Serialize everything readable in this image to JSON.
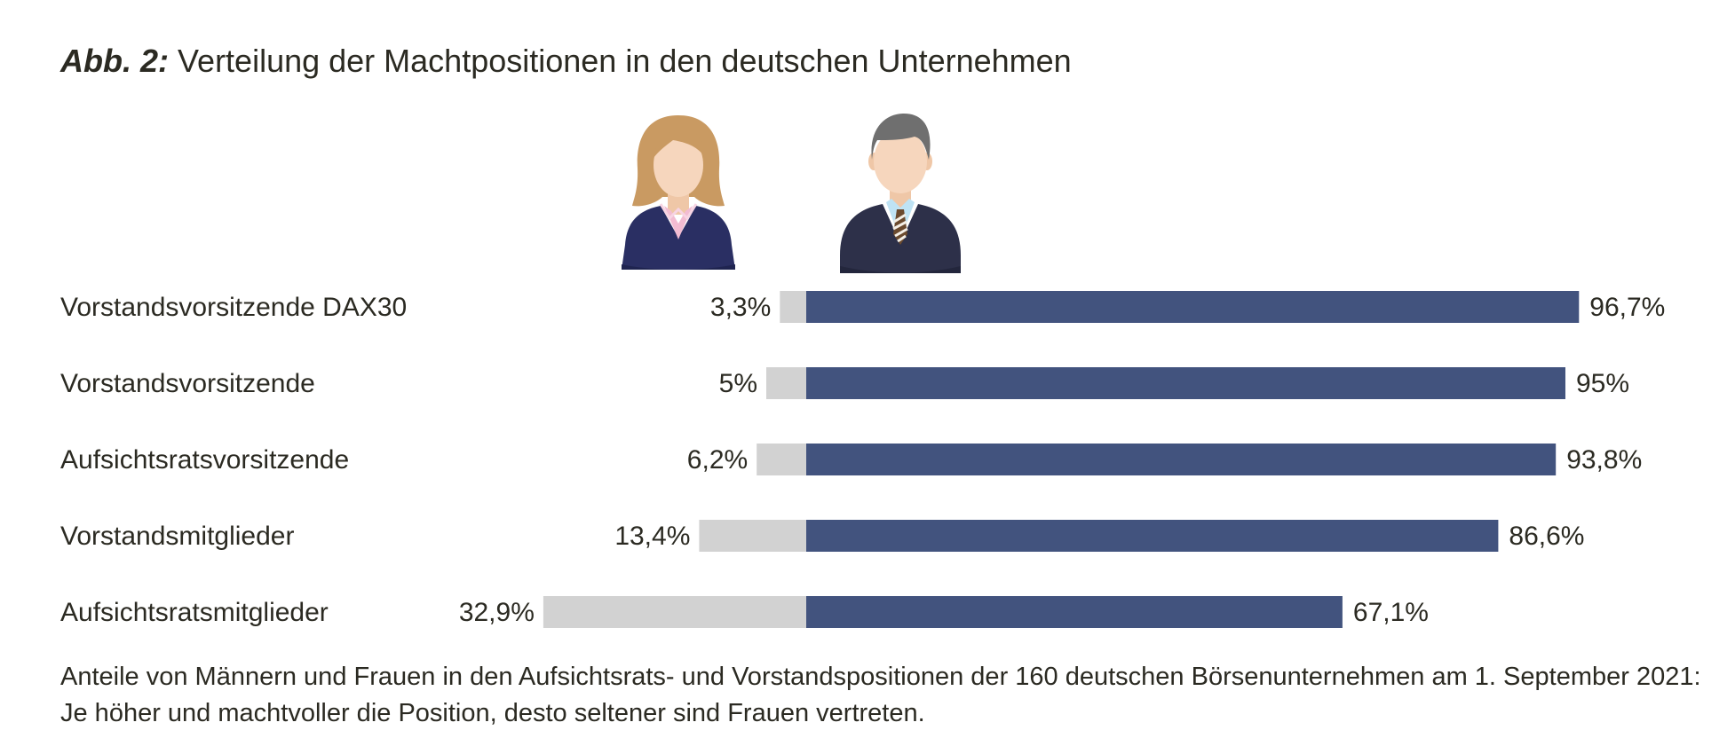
{
  "title": {
    "prefix": "Abb. 2:",
    "text": "Verteilung der Machtpositionen in den deutschen Unternehmen"
  },
  "icons": {
    "female": "woman-avatar-icon",
    "male": "man-avatar-icon"
  },
  "colors": {
    "women_bar": "#d2d2d2",
    "men_bar": "#42537e",
    "text": "#2b2a22"
  },
  "chart_data": {
    "type": "bar",
    "orientation": "horizontal",
    "stacked": true,
    "categories": [
      "Vorstandsvorsitzende DAX30",
      "Vorstandsvorsitzende",
      "Aufsichtsratsvorsitzende",
      "Vorstandsmitglieder",
      "Aufsichtsratsmitglieder"
    ],
    "series": [
      {
        "values": [
          3.3,
          5,
          6.2,
          13.4,
          32.9
        ],
        "labels": [
          "3,3%",
          "5%",
          "6,2%",
          "13,4%",
          "32,9%"
        ],
        "color": "#d2d2d2",
        "icon": "woman-avatar-icon"
      },
      {
        "values": [
          96.7,
          95,
          93.8,
          86.6,
          67.1
        ],
        "labels": [
          "96,7%",
          "95%",
          "93,8%",
          "86,6%",
          "67,1%"
        ],
        "color": "#42537e",
        "icon": "man-avatar-icon"
      }
    ],
    "xlim": [
      0,
      100
    ],
    "grid": false,
    "legend": "icons above bars"
  },
  "caption": {
    "line1": "Anteile von Männern und Frauen in den Aufsichtsrats- und Vorstandspositionen der 160 deutschen Börsenunternehmen am 1. September 2021:",
    "line2": "Je höher und machtvoller die Position, desto seltener sind Frauen vertreten."
  }
}
